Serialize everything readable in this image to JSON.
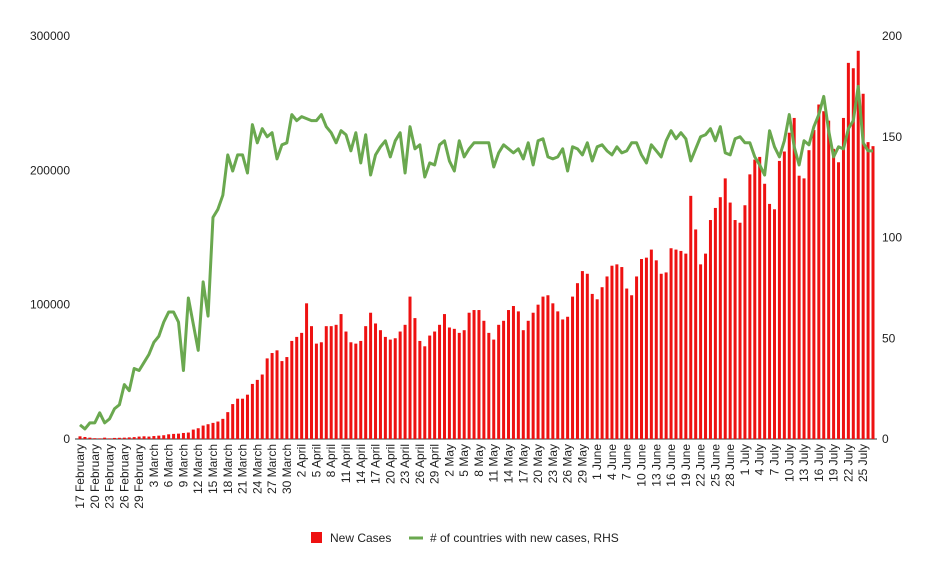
{
  "chart_data": {
    "type": "bar-line",
    "categories": [
      "17 February",
      null,
      null,
      "20 February",
      null,
      null,
      "23 February",
      null,
      null,
      "26 February",
      null,
      null,
      "29 February",
      null,
      null,
      "3 March",
      null,
      null,
      "6 March",
      null,
      null,
      "9 March",
      null,
      null,
      "12 March",
      null,
      null,
      "15 March",
      null,
      null,
      "18 March",
      null,
      null,
      "21 March",
      null,
      null,
      "24 March",
      null,
      null,
      "27 March",
      null,
      null,
      "30 March",
      null,
      null,
      "2 April",
      null,
      null,
      "5 April",
      null,
      null,
      "8 April",
      null,
      null,
      "11 April",
      null,
      null,
      "14 April",
      null,
      null,
      "17 April",
      null,
      null,
      "20 April",
      null,
      null,
      "23 April",
      null,
      null,
      "26 April",
      null,
      null,
      "29 April",
      null,
      null,
      "2 May",
      null,
      null,
      "5 May",
      null,
      null,
      "8 May",
      null,
      null,
      "11 May",
      null,
      null,
      "14 May",
      null,
      null,
      "17 May",
      null,
      null,
      "20 May",
      null,
      null,
      "23 May",
      null,
      null,
      "26 May",
      null,
      null,
      "29 May",
      null,
      null,
      "1 June",
      null,
      null,
      "4 June",
      null,
      null,
      "7 June",
      null,
      null,
      "10 June",
      null,
      null,
      "13 June",
      null,
      null,
      "16 June",
      null,
      null,
      "19 June",
      null,
      null,
      "22 June",
      null,
      null,
      "25 June",
      null,
      null,
      "28 June",
      null,
      null,
      "1 July",
      null,
      null,
      "4 July",
      null,
      null,
      "7 July",
      null,
      null,
      "10 July",
      null,
      null,
      "13 July",
      null,
      null,
      "16 July",
      null,
      null,
      "19 July",
      null,
      null,
      "22 July",
      null,
      null,
      "25 July",
      null,
      null
    ],
    "series": [
      {
        "name": "New Cases",
        "kind": "bar",
        "color": "#ee1111",
        "values": [
          2000,
          1500,
          1000,
          600,
          500,
          1000,
          500,
          800,
          900,
          1000,
          1200,
          1400,
          1800,
          2000,
          1800,
          2200,
          2500,
          2800,
          3500,
          3800,
          4000,
          4500,
          4800,
          7000,
          8000,
          10000,
          11000,
          12000,
          13000,
          15000,
          20000,
          26000,
          30000,
          30000,
          33000,
          41000,
          44000,
          48000,
          60000,
          64000,
          66000,
          58000,
          61000,
          73000,
          76000,
          79000,
          101000,
          84000,
          71000,
          72000,
          84000,
          84000,
          85000,
          93000,
          80000,
          72000,
          71000,
          73000,
          84000,
          94000,
          86000,
          81000,
          76000,
          74000,
          75000,
          80000,
          85000,
          106000,
          90000,
          73000,
          69000,
          77000,
          80000,
          85000,
          93000,
          83000,
          82000,
          79000,
          81000,
          94000,
          96000,
          96000,
          88000,
          79000,
          74000,
          85000,
          88000,
          96000,
          99000,
          95000,
          81000,
          88000,
          94000,
          100000,
          106000,
          107000,
          101000,
          95000,
          89000,
          91000,
          106000,
          116000,
          125000,
          123000,
          108000,
          104000,
          113000,
          121000,
          129000,
          130000,
          128000,
          112000,
          107000,
          121000,
          134000,
          135000,
          141000,
          133000,
          123000,
          124000,
          142000,
          141000,
          140000,
          138000,
          181000,
          156000,
          130000,
          138000,
          163000,
          172000,
          180000,
          194000,
          176000,
          163000,
          161000,
          174000,
          197000,
          208000,
          210000,
          190000,
          175000,
          171000,
          207000,
          214000,
          228000,
          239000,
          196000,
          194000,
          215000,
          230000,
          249000,
          244000,
          237000,
          216000,
          206000,
          239000,
          280000,
          276000,
          289000,
          257000,
          221000,
          218000
        ]
      },
      {
        "name": "# of countries with new cases, RHS",
        "kind": "line",
        "axis": "y2",
        "color": "#6aa84f",
        "values": [
          7,
          5,
          8,
          8,
          13,
          8,
          10,
          15,
          17,
          27,
          24,
          35,
          34,
          38,
          42,
          48,
          51,
          58,
          63,
          63,
          58,
          34,
          70,
          57,
          44,
          78,
          61,
          110,
          114,
          121,
          141,
          133,
          141,
          141,
          132,
          156,
          147,
          154,
          150,
          152,
          139,
          146,
          147,
          161,
          158,
          160,
          159,
          158,
          158,
          161,
          155,
          152,
          147,
          153,
          151,
          143,
          152,
          137,
          151,
          131,
          141,
          145,
          148,
          140,
          148,
          152,
          132,
          155,
          144,
          146,
          130,
          137,
          136,
          146,
          148,
          138,
          133,
          148,
          140,
          144,
          147,
          147,
          147,
          147,
          135,
          142,
          146,
          144,
          142,
          144,
          139,
          147,
          136,
          148,
          149,
          140,
          139,
          140,
          144,
          133,
          145,
          144,
          141,
          147,
          138,
          145,
          146,
          143,
          141,
          145,
          142,
          143,
          147,
          147,
          141,
          137,
          146,
          143,
          140,
          148,
          153,
          149,
          152,
          149,
          138,
          144,
          150,
          151,
          154,
          148,
          155,
          142,
          141,
          149,
          150,
          147,
          147,
          140,
          136,
          131,
          153,
          145,
          140,
          148,
          161,
          145,
          136,
          148,
          146,
          155,
          161,
          170,
          153,
          140,
          145,
          144,
          154,
          158,
          175,
          147,
          143,
          143
        ]
      }
    ],
    "ylim": [
      0,
      300000
    ],
    "yticks": [
      0,
      100000,
      200000,
      300000
    ],
    "y2lim": [
      0,
      200
    ],
    "y2ticks": [
      0,
      50,
      100,
      150,
      200
    ],
    "legend": "bottom"
  }
}
